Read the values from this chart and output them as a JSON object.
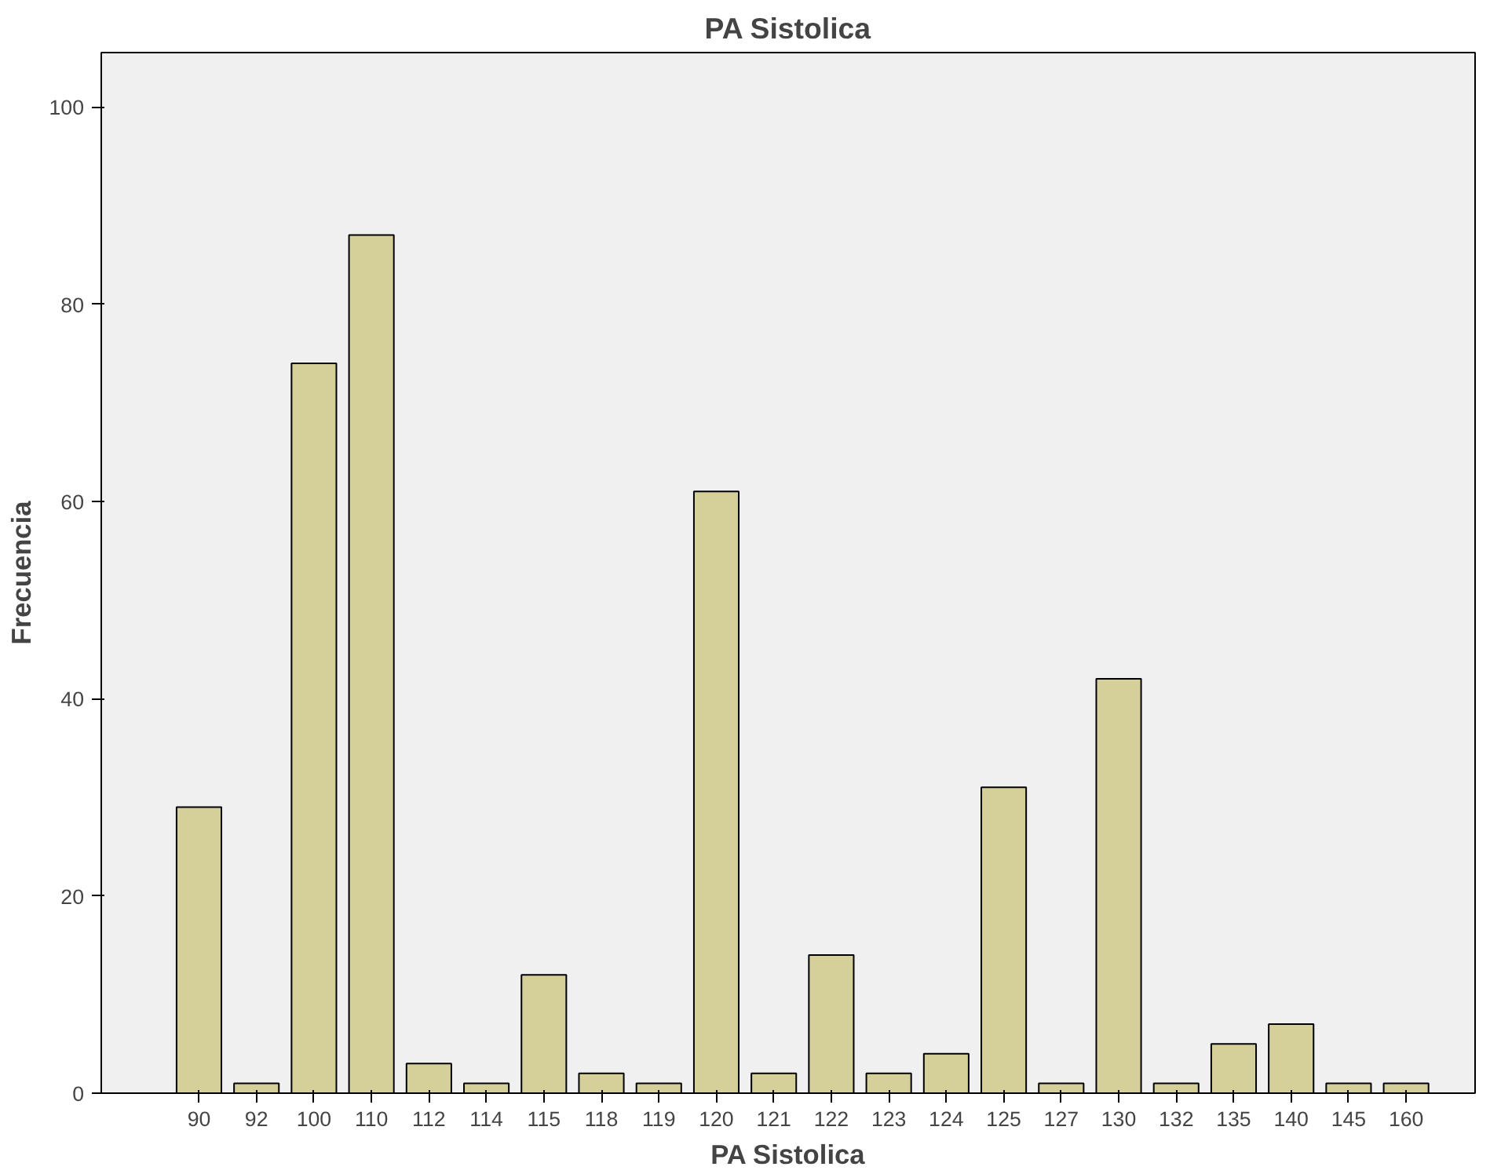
{
  "chart_data": {
    "type": "bar",
    "title": "PA Sistolica",
    "xlabel": "PA Sistolica",
    "ylabel": "Frecuencia",
    "categories": [
      "90",
      "92",
      "100",
      "110",
      "112",
      "114",
      "115",
      "118",
      "119",
      "120",
      "121",
      "122",
      "123",
      "124",
      "125",
      "127",
      "130",
      "132",
      "135",
      "140",
      "145",
      "160"
    ],
    "values": [
      29,
      1,
      74,
      87,
      3,
      1,
      12,
      2,
      1,
      61,
      2,
      14,
      2,
      4,
      31,
      1,
      42,
      1,
      5,
      7,
      1,
      1
    ],
    "color": "#d5cf99",
    "ylim": [
      0,
      105.5
    ],
    "yticks": [
      0,
      20,
      40,
      60,
      80,
      100
    ],
    "grid": false
  }
}
